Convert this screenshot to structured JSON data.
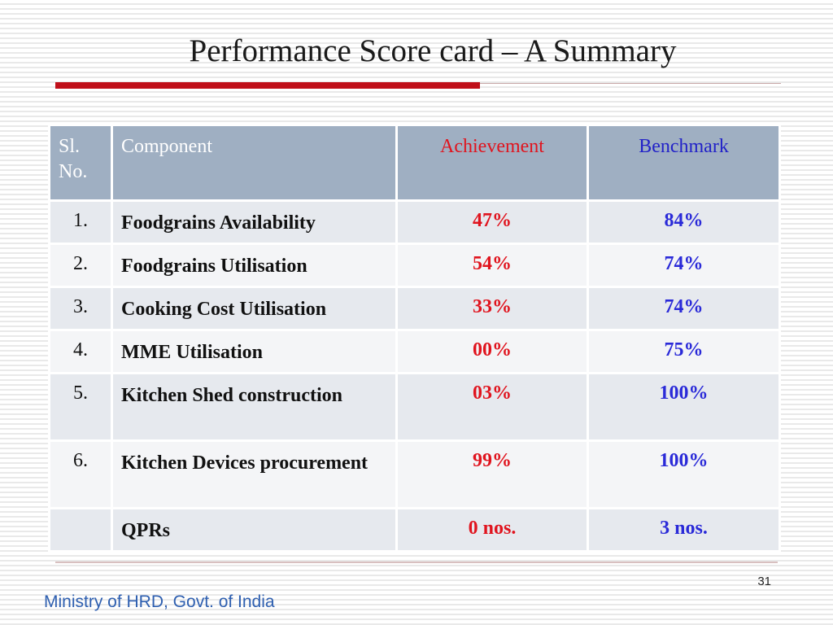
{
  "slide": {
    "title": "Performance Score card – A Summary",
    "page_number": "31",
    "footer": "Ministry of HRD, Govt. of India"
  },
  "table": {
    "headers": {
      "sl": "Sl. No.",
      "component": "Component",
      "achievement": "Achievement",
      "benchmark": "Benchmark"
    },
    "rows": [
      {
        "sl": "1.",
        "component": "Foodgrains Availability",
        "achievement": "47%",
        "benchmark": "84%"
      },
      {
        "sl": "2.",
        "component": "Foodgrains Utilisation",
        "achievement": "54%",
        "benchmark": "74%"
      },
      {
        "sl": "3.",
        "component": "Cooking Cost Utilisation",
        "achievement": "33%",
        "benchmark": "74%"
      },
      {
        "sl": "4.",
        "component": "MME Utilisation",
        "achievement": "00%",
        "benchmark": "75%"
      },
      {
        "sl": "5.",
        "component": "Kitchen Shed construction",
        "achievement": "03%",
        "benchmark": "100%"
      },
      {
        "sl": "6.",
        "component": "Kitchen Devices procurement",
        "achievement": "99%",
        "benchmark": "100%"
      },
      {
        "sl": "",
        "component": "QPRs",
        "achievement": "0 nos.",
        "benchmark": "3 nos."
      }
    ]
  },
  "colors": {
    "accent_red": "#c0101a",
    "achievement_text": "#e0141e",
    "benchmark_text": "#2a2ad8",
    "header_bg": "#9fafc2",
    "footer_text": "#2e5fb0"
  }
}
